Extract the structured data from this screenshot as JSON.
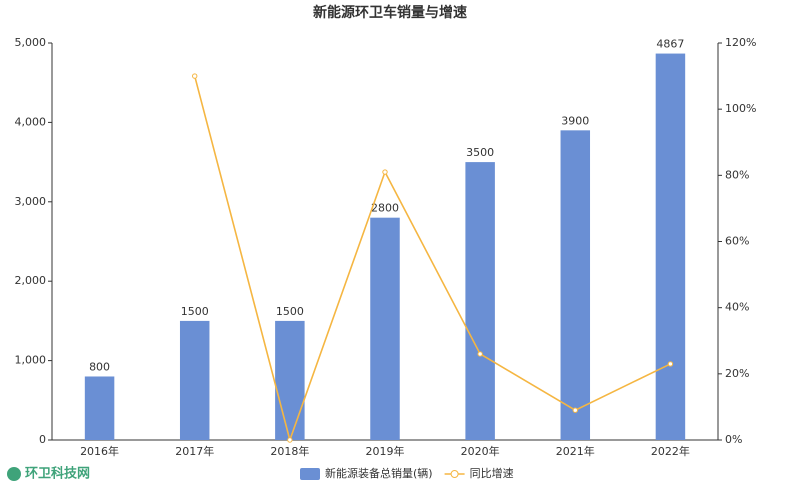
{
  "chart_data": {
    "type": "bar-line",
    "title": "新能源环卫车销量与增速",
    "categories": [
      "2016年",
      "2017年",
      "2018年",
      "2019年",
      "2020年",
      "2021年",
      "2022年"
    ],
    "series": [
      {
        "name": "新能源装备总销量(辆)",
        "color": "#6a8fd4",
        "type": "bar",
        "values": [
          800,
          1500,
          1500,
          2800,
          3500,
          3900,
          4867
        ]
      },
      {
        "name": "同比增速",
        "color": "#f5b642",
        "type": "line",
        "axis": "y2",
        "values": [
          null,
          110,
          0,
          81,
          26,
          9,
          23
        ]
      }
    ],
    "ylim": [
      0,
      5000
    ],
    "yticks": [
      0,
      {
        "value": 1000,
        "label": "1,000"
      },
      {
        "value": 2000,
        "label": "2,000"
      },
      {
        "value": 3000,
        "label": "3,000"
      },
      {
        "value": 4000,
        "label": "4,000"
      },
      {
        "value": 5000,
        "label": "5,000"
      }
    ],
    "y2lim": [
      0,
      120
    ],
    "y2ticks": [
      {
        "value": 0,
        "label": "0%"
      },
      {
        "value": 20,
        "label": "20%"
      },
      {
        "value": 40,
        "label": "40%"
      },
      {
        "value": 60,
        "label": "60%"
      },
      {
        "value": 80,
        "label": "80%"
      },
      {
        "value": 100,
        "label": "100%"
      },
      {
        "value": 120,
        "label": "120%"
      }
    ],
    "watermark": "环卫科技网"
  }
}
